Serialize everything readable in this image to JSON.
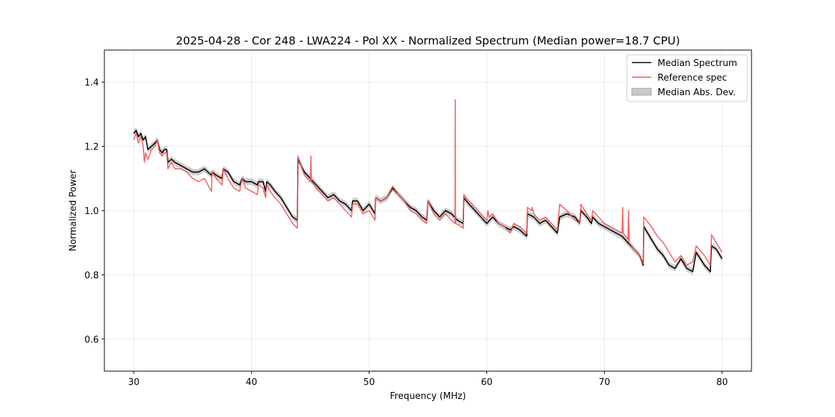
{
  "chart_data": {
    "type": "line",
    "title": "2025-04-28 - Cor 248 - LWA224 - Pol XX - Normalized Spectrum (Median power=18.7 CPU)",
    "xlabel": "Frequency (MHz)",
    "ylabel": "Normalized Power",
    "xlim": [
      27.5,
      82.5
    ],
    "ylim": [
      0.5,
      1.5
    ],
    "xticks": [
      30,
      40,
      50,
      60,
      70,
      80
    ],
    "yticks": [
      0.6,
      0.8,
      1.0,
      1.2,
      1.4
    ],
    "xtick_labels": [
      "30",
      "40",
      "50",
      "60",
      "70",
      "80"
    ],
    "ytick_labels": [
      "0.6",
      "0.8",
      "1.0",
      "1.2",
      "1.4"
    ],
    "grid": true,
    "legend_position": "top-right",
    "mad_band_halfwidth": 0.01,
    "series": [
      {
        "name": "Median Spectrum",
        "color": "#000000",
        "points": [
          [
            30.0,
            1.24
          ],
          [
            30.2,
            1.25
          ],
          [
            30.4,
            1.23
          ],
          [
            30.6,
            1.24
          ],
          [
            30.8,
            1.22
          ],
          [
            31.0,
            1.23
          ],
          [
            31.2,
            1.19
          ],
          [
            31.5,
            1.2
          ],
          [
            31.8,
            1.21
          ],
          [
            32.0,
            1.22
          ],
          [
            32.2,
            1.19
          ],
          [
            32.4,
            1.18
          ],
          [
            32.6,
            1.19
          ],
          [
            32.8,
            1.19
          ],
          [
            32.9,
            1.15
          ],
          [
            33.2,
            1.16
          ],
          [
            33.5,
            1.15
          ],
          [
            34.0,
            1.14
          ],
          [
            34.5,
            1.13
          ],
          [
            35.0,
            1.12
          ],
          [
            35.5,
            1.12
          ],
          [
            36.0,
            1.13
          ],
          [
            36.3,
            1.12
          ],
          [
            36.6,
            1.11
          ],
          [
            36.65,
            1.12
          ],
          [
            37.0,
            1.11
          ],
          [
            37.5,
            1.1
          ],
          [
            37.6,
            1.13
          ],
          [
            38.0,
            1.12
          ],
          [
            38.5,
            1.09
          ],
          [
            39.0,
            1.08
          ],
          [
            39.2,
            1.1
          ],
          [
            39.5,
            1.09
          ],
          [
            40.0,
            1.09
          ],
          [
            40.5,
            1.08
          ],
          [
            40.6,
            1.09
          ],
          [
            41.0,
            1.09
          ],
          [
            41.2,
            1.06
          ],
          [
            41.3,
            1.09
          ],
          [
            41.6,
            1.08
          ],
          [
            42.0,
            1.06
          ],
          [
            42.5,
            1.04
          ],
          [
            43.0,
            1.01
          ],
          [
            43.5,
            0.98
          ],
          [
            43.9,
            0.97
          ],
          [
            43.95,
            1.16
          ],
          [
            44.5,
            1.12
          ],
          [
            45.0,
            1.1
          ],
          [
            45.5,
            1.08
          ],
          [
            46.0,
            1.06
          ],
          [
            46.5,
            1.04
          ],
          [
            47.0,
            1.05
          ],
          [
            47.5,
            1.03
          ],
          [
            48.0,
            1.02
          ],
          [
            48.5,
            1.0
          ],
          [
            48.6,
            1.03
          ],
          [
            49.0,
            1.03
          ],
          [
            49.5,
            1.0
          ],
          [
            50.0,
            1.02
          ],
          [
            50.5,
            0.99
          ],
          [
            50.55,
            1.04
          ],
          [
            51.0,
            1.03
          ],
          [
            51.5,
            1.04
          ],
          [
            52.0,
            1.07
          ],
          [
            52.5,
            1.05
          ],
          [
            53.0,
            1.03
          ],
          [
            53.5,
            1.01
          ],
          [
            54.0,
            1.0
          ],
          [
            54.5,
            0.98
          ],
          [
            54.9,
            0.97
          ],
          [
            55.0,
            1.03
          ],
          [
            55.5,
            1.0
          ],
          [
            56.0,
            0.98
          ],
          [
            56.5,
            1.0
          ],
          [
            57.0,
            0.99
          ],
          [
            57.5,
            0.97
          ],
          [
            58.0,
            0.96
          ],
          [
            58.05,
            1.04
          ],
          [
            58.5,
            1.02
          ],
          [
            59.0,
            1.0
          ],
          [
            59.5,
            0.98
          ],
          [
            60.0,
            0.96
          ],
          [
            60.5,
            0.98
          ],
          [
            61.0,
            0.96
          ],
          [
            61.5,
            0.95
          ],
          [
            62.0,
            0.94
          ],
          [
            62.3,
            0.95
          ],
          [
            62.8,
            0.94
          ],
          [
            63.4,
            0.92
          ],
          [
            63.45,
            0.99
          ],
          [
            64.0,
            0.98
          ],
          [
            64.5,
            0.96
          ],
          [
            65.0,
            0.97
          ],
          [
            65.5,
            0.95
          ],
          [
            66.0,
            0.93
          ],
          [
            66.2,
            0.98
          ],
          [
            66.8,
            0.99
          ],
          [
            67.5,
            0.98
          ],
          [
            67.9,
            0.96
          ],
          [
            68.0,
            1.0
          ],
          [
            68.5,
            0.98
          ],
          [
            68.9,
            0.96
          ],
          [
            69.0,
            0.98
          ],
          [
            69.5,
            0.96
          ],
          [
            70.0,
            0.95
          ],
          [
            70.5,
            0.94
          ],
          [
            71.0,
            0.93
          ],
          [
            71.5,
            0.92
          ],
          [
            72.0,
            0.9
          ],
          [
            72.5,
            0.88
          ],
          [
            73.0,
            0.86
          ],
          [
            73.3,
            0.83
          ],
          [
            73.35,
            0.95
          ],
          [
            74.0,
            0.91
          ],
          [
            74.5,
            0.88
          ],
          [
            75.0,
            0.86
          ],
          [
            75.5,
            0.83
          ],
          [
            76.0,
            0.82
          ],
          [
            76.5,
            0.85
          ],
          [
            77.0,
            0.82
          ],
          [
            77.5,
            0.81
          ],
          [
            77.8,
            0.87
          ],
          [
            78.5,
            0.83
          ],
          [
            79.0,
            0.81
          ],
          [
            79.1,
            0.89
          ],
          [
            79.5,
            0.88
          ],
          [
            80.0,
            0.85
          ]
        ]
      },
      {
        "name": "Reference spec",
        "color": "#ee5555",
        "points": [
          [
            30.0,
            1.22
          ],
          [
            30.2,
            1.24
          ],
          [
            30.4,
            1.21
          ],
          [
            30.6,
            1.23
          ],
          [
            30.8,
            1.2
          ],
          [
            30.9,
            1.15
          ],
          [
            31.0,
            1.18
          ],
          [
            31.2,
            1.16
          ],
          [
            31.5,
            1.19
          ],
          [
            31.8,
            1.2
          ],
          [
            32.0,
            1.22
          ],
          [
            32.2,
            1.18
          ],
          [
            32.4,
            1.17
          ],
          [
            32.6,
            1.18
          ],
          [
            32.8,
            1.18
          ],
          [
            32.9,
            1.13
          ],
          [
            33.2,
            1.15
          ],
          [
            33.5,
            1.13
          ],
          [
            34.0,
            1.13
          ],
          [
            34.5,
            1.12
          ],
          [
            35.0,
            1.1
          ],
          [
            35.5,
            1.09
          ],
          [
            36.0,
            1.1
          ],
          [
            36.3,
            1.08
          ],
          [
            36.6,
            1.06
          ],
          [
            36.65,
            1.12
          ],
          [
            37.0,
            1.1
          ],
          [
            37.5,
            1.08
          ],
          [
            37.6,
            1.13
          ],
          [
            38.0,
            1.1
          ],
          [
            38.5,
            1.07
          ],
          [
            39.0,
            1.06
          ],
          [
            39.2,
            1.1
          ],
          [
            39.5,
            1.07
          ],
          [
            40.0,
            1.06
          ],
          [
            40.5,
            1.05
          ],
          [
            40.6,
            1.08
          ],
          [
            41.0,
            1.07
          ],
          [
            41.2,
            1.04
          ],
          [
            41.3,
            1.08
          ],
          [
            41.6,
            1.06
          ],
          [
            42.0,
            1.04
          ],
          [
            42.5,
            1.02
          ],
          [
            43.0,
            0.99
          ],
          [
            43.5,
            0.96
          ],
          [
            43.9,
            0.945
          ],
          [
            43.95,
            1.17
          ],
          [
            44.5,
            1.11
          ],
          [
            45.0,
            1.09
          ],
          [
            45.05,
            1.17
          ],
          [
            45.1,
            1.09
          ],
          [
            45.5,
            1.07
          ],
          [
            46.0,
            1.05
          ],
          [
            46.5,
            1.03
          ],
          [
            47.0,
            1.04
          ],
          [
            47.5,
            1.02
          ],
          [
            48.0,
            1.0
          ],
          [
            48.5,
            0.98
          ],
          [
            48.6,
            1.02
          ],
          [
            49.0,
            1.02
          ],
          [
            49.5,
            0.99
          ],
          [
            50.0,
            1.0
          ],
          [
            50.5,
            0.97
          ],
          [
            50.55,
            1.04
          ],
          [
            51.0,
            1.03
          ],
          [
            51.5,
            1.04
          ],
          [
            52.0,
            1.075
          ],
          [
            52.5,
            1.05
          ],
          [
            53.0,
            1.03
          ],
          [
            53.5,
            1.0
          ],
          [
            54.0,
            0.99
          ],
          [
            54.5,
            0.97
          ],
          [
            54.9,
            0.96
          ],
          [
            55.0,
            1.03
          ],
          [
            55.5,
            0.99
          ],
          [
            56.0,
            0.97
          ],
          [
            56.5,
            0.99
          ],
          [
            57.0,
            0.97
          ],
          [
            57.3,
            0.96
          ],
          [
            57.32,
            1.345
          ],
          [
            57.34,
            0.96
          ],
          [
            57.6,
            0.955
          ],
          [
            58.0,
            0.945
          ],
          [
            58.05,
            1.05
          ],
          [
            58.5,
            1.03
          ],
          [
            59.0,
            1.01
          ],
          [
            59.5,
            0.99
          ],
          [
            60.0,
            0.97
          ],
          [
            60.1,
            1.0
          ],
          [
            60.2,
            0.98
          ],
          [
            60.5,
            0.99
          ],
          [
            61.0,
            0.96
          ],
          [
            61.5,
            0.95
          ],
          [
            62.0,
            0.93
          ],
          [
            62.3,
            0.96
          ],
          [
            62.8,
            0.95
          ],
          [
            63.4,
            0.93
          ],
          [
            63.45,
            1.01
          ],
          [
            63.8,
            1.0
          ],
          [
            63.85,
            1.01
          ],
          [
            64.0,
            0.99
          ],
          [
            64.5,
            0.97
          ],
          [
            65.0,
            0.98
          ],
          [
            65.5,
            0.96
          ],
          [
            66.0,
            0.94
          ],
          [
            66.2,
            1.02
          ],
          [
            66.8,
            1.0
          ],
          [
            67.5,
            0.97
          ],
          [
            67.9,
            0.96
          ],
          [
            68.0,
            1.02
          ],
          [
            68.5,
            0.99
          ],
          [
            68.9,
            0.97
          ],
          [
            69.0,
            1.0
          ],
          [
            69.5,
            0.98
          ],
          [
            70.0,
            0.96
          ],
          [
            70.5,
            0.95
          ],
          [
            71.0,
            0.94
          ],
          [
            71.5,
            0.93
          ],
          [
            71.55,
            1.01
          ],
          [
            71.6,
            0.93
          ],
          [
            72.0,
            0.91
          ],
          [
            72.05,
            1.0
          ],
          [
            72.1,
            0.9
          ],
          [
            72.5,
            0.88
          ],
          [
            73.0,
            0.86
          ],
          [
            73.3,
            0.835
          ],
          [
            73.35,
            0.98
          ],
          [
            74.0,
            0.95
          ],
          [
            74.5,
            0.92
          ],
          [
            75.0,
            0.9
          ],
          [
            75.5,
            0.87
          ],
          [
            76.0,
            0.84
          ],
          [
            76.5,
            0.86
          ],
          [
            77.0,
            0.83
          ],
          [
            77.5,
            0.84
          ],
          [
            77.8,
            0.89
          ],
          [
            78.5,
            0.86
          ],
          [
            79.0,
            0.83
          ],
          [
            79.1,
            0.925
          ],
          [
            79.5,
            0.9
          ],
          [
            80.0,
            0.87
          ]
        ]
      }
    ],
    "legend": [
      {
        "label": "Median Spectrum",
        "kind": "line",
        "color": "#000000"
      },
      {
        "label": "Reference spec",
        "kind": "line",
        "color": "#ee5555"
      },
      {
        "label": "Median Abs. Dev.",
        "kind": "patch",
        "color": "#c8c8c8"
      }
    ]
  }
}
